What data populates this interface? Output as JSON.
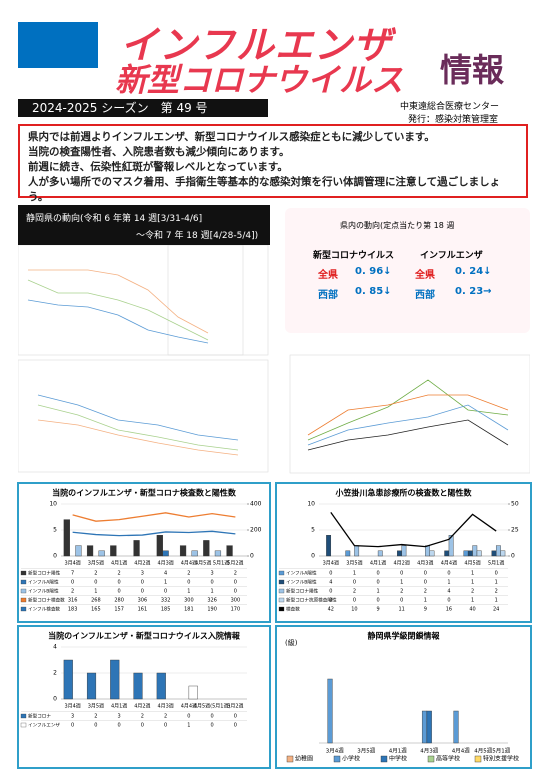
{
  "header": {
    "title1": "インフルエンザ",
    "title2": "新型コロナウイルス",
    "title3": "情報",
    "season": "2024-2025 シーズン　第 49 号",
    "org": "中東遠総合医療センター",
    "publisher": "発行：感染対策管理室"
  },
  "notice": [
    "県内では前週よりインフルエンザ、新型コロナウイルス感染症ともに減少しています。",
    "当院の検査陽性者、入院患者数も減少傾向にあります。",
    "前週に続き、伝染性紅斑が警報レベルとなっています。",
    "人が多い場所でのマスク着用、手指衛生等基本的な感染対策を行い体調管理に注意して過ごしましょう。"
  ],
  "shizuoka": {
    "title": "静岡県の動向(令和 6 年第 14 週[3/31-4/6]",
    "subtitle": "～令和 7 年 18 週[4/28-5/4])"
  },
  "regional": {
    "title": "県内の動向(定点当たり第 18 週",
    "columns": [
      "新型コロナウイルス",
      "インフルエンザ"
    ],
    "rows": [
      {
        "label": "全県",
        "corona": "0. 96↓",
        "flu_label": "全県",
        "flu": "0. 24↓"
      },
      {
        "label": "西部",
        "corona": "0. 85↓",
        "flu_label": "西部",
        "flu": "0. 23→"
      }
    ]
  },
  "charts": [
    {
      "title": "当院のインフルエンザ・新型コロナ検査数と陽性数",
      "categories": [
        "3月4週",
        "3月5週",
        "4月1週",
        "4月2週",
        "4月3週",
        "4月4週",
        "4月5週 5月1週",
        "5月2週"
      ],
      "ylim": [
        0,
        10
      ],
      "yticks": [
        0,
        5,
        10
      ],
      "y2lim": [
        0,
        400
      ],
      "y2ticks": [
        0,
        200,
        400
      ],
      "series": [
        {
          "name": "新型コロナ陽性",
          "mark": "bar",
          "color": "#333333",
          "values": [
            7,
            2,
            2,
            3,
            4,
            2,
            3,
            2
          ]
        },
        {
          "name": "インフルA陽性",
          "mark": "bar",
          "color": "#2e75b6",
          "values": [
            0,
            0,
            0,
            0,
            1,
            0,
            0,
            0
          ]
        },
        {
          "name": "インフルB陽性",
          "mark": "bar",
          "color": "#9dc3e6",
          "values": [
            2,
            1,
            0,
            0,
            0,
            1,
            1,
            0
          ]
        },
        {
          "name": "新型コロナ検査数",
          "mark": "line",
          "axis": "y2",
          "color": "#ed7d31",
          "values": [
            316,
            268,
            280,
            306,
            332,
            300,
            326,
            300
          ]
        },
        {
          "name": "インフル検査数",
          "mark": "line",
          "axis": "y2",
          "color": "#2e75b6",
          "values": [
            183,
            165,
            157,
            161,
            185,
            181,
            190,
            170
          ]
        }
      ]
    },
    {
      "title": "小笠掛川急患診療所の検査数と陽性数",
      "categories": [
        "3月4週",
        "3月5週",
        "4月1週",
        "4月2週",
        "4月3週",
        "4月4週",
        "4月5週",
        "5月1週"
      ],
      "ylim": [
        0,
        10
      ],
      "yticks": [
        0,
        5,
        10
      ],
      "y2lim": [
        0,
        50
      ],
      "y2ticks": [
        0,
        25,
        50
      ],
      "series": [
        {
          "name": "インフルA陽性",
          "mark": "bar",
          "color": "#5b9bd5",
          "values": [
            0,
            1,
            0,
            0,
            0,
            0,
            1,
            0
          ]
        },
        {
          "name": "インフルB陽性",
          "mark": "bar",
          "color": "#1f4e79",
          "values": [
            4,
            0,
            0,
            1,
            0,
            1,
            1,
            1
          ]
        },
        {
          "name": "新型コロナ陽性",
          "mark": "bar",
          "color": "#9dc3e6",
          "values": [
            0,
            2,
            1,
            2,
            2,
            4,
            2,
            2
          ]
        },
        {
          "name": "新型コロナ抗原検査陽性",
          "mark": "bar",
          "color": "#bdd7ee",
          "values": [
            0,
            0,
            0,
            0,
            1,
            0,
            1,
            1
          ]
        },
        {
          "name": "検査数",
          "mark": "line",
          "axis": "y2",
          "color": "#000000",
          "values": [
            42,
            10,
            9,
            11,
            9,
            16,
            40,
            24
          ]
        }
      ]
    },
    {
      "title": "当院のインフルエンザ・新型コロナウイルス入院情報",
      "categories": [
        "3月4週",
        "3月5週",
        "4月1週",
        "4月2週",
        "4月3週",
        "4月4週",
        "4月5週(5月1週)",
        "5月2週"
      ],
      "ylim": [
        0,
        4
      ],
      "yticks": [
        0,
        2,
        4
      ],
      "series": [
        {
          "name": "新型コロナ",
          "mark": "bar",
          "color": "#2e75b6",
          "values": [
            3,
            2,
            3,
            2,
            2,
            0,
            0,
            0
          ]
        },
        {
          "name": "インフルエンザ",
          "mark": "bar",
          "color": "#ffffff",
          "values": [
            0,
            0,
            0,
            0,
            0,
            1,
            0,
            0
          ]
        }
      ]
    },
    {
      "title": "静岡県学級閉鎖情報",
      "ylabel": "(級)",
      "legend": "bottom",
      "categories": [
        "3月4週",
        "3月5週",
        "4月1週",
        "4月3週",
        "4月4週",
        "4月5週5月1週"
      ],
      "ylim": [
        0,
        3
      ],
      "yticks": [],
      "series": [
        {
          "name": "幼稚園",
          "mark": "bar",
          "color": "#f4b183",
          "values": [
            0,
            0,
            0,
            0,
            0,
            0
          ]
        },
        {
          "name": "小学校",
          "mark": "bar",
          "color": "#5b9bd5",
          "values": [
            2,
            0,
            0,
            1,
            1,
            0
          ]
        },
        {
          "name": "中学校",
          "mark": "bar",
          "color": "#2e75b6",
          "values": [
            0,
            0,
            0,
            1,
            0,
            0
          ]
        },
        {
          "name": "高等学校",
          "mark": "bar",
          "color": "#a9d18e",
          "values": [
            0,
            0,
            0,
            0,
            0,
            0
          ]
        },
        {
          "name": "特別支援学校",
          "mark": "bar",
          "color": "#ffd966",
          "values": [
            0,
            0,
            0,
            0,
            0,
            0
          ]
        }
      ]
    }
  ]
}
